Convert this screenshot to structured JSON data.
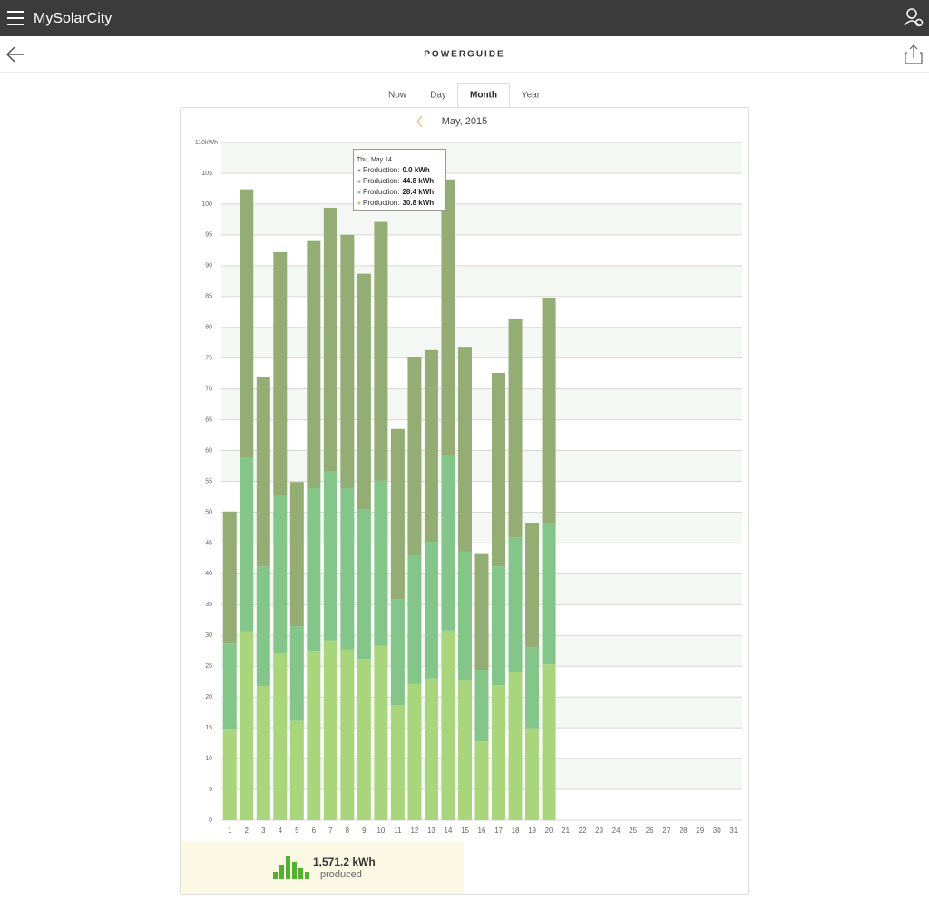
{
  "app": {
    "brand": "MySolarCity",
    "page_title": "POWERGUIDE",
    "tabs": [
      "Now",
      "Day",
      "Month",
      "Year"
    ],
    "selected_tab": 2,
    "period": "May, 2015"
  },
  "tooltip": {
    "title": "Thu, May 14",
    "rows": [
      {
        "label": "Production:",
        "value": "0.0 kWh"
      },
      {
        "label": "Production:",
        "value": "44.8 kWh"
      },
      {
        "label": "Production:",
        "value": "28.4 kWh"
      },
      {
        "label": "Production:",
        "value": "30.8 kWh"
      }
    ]
  },
  "summary": {
    "total": "1,571.2 kWh",
    "caption": "produced"
  },
  "chart_data": {
    "type": "bar",
    "stacked": true,
    "grid": true,
    "categories": [
      "1",
      "2",
      "3",
      "4",
      "5",
      "6",
      "7",
      "8",
      "9",
      "10",
      "11",
      "12",
      "13",
      "14",
      "15",
      "16",
      "17",
      "18",
      "19",
      "20",
      "21",
      "22",
      "23",
      "24",
      "25",
      "26",
      "27",
      "28",
      "29",
      "30",
      "31"
    ],
    "series": [
      {
        "name": "Production",
        "color": "#7f9fb8",
        "values": [
          0,
          0,
          0,
          0,
          0,
          0,
          0,
          0,
          0,
          0,
          0,
          0,
          0,
          0,
          0,
          0,
          0,
          0,
          0,
          0,
          null,
          null,
          null,
          null,
          null,
          null,
          null,
          null,
          null,
          null,
          null
        ]
      },
      {
        "name": "Production",
        "color": "#93ad74",
        "values": [
          21.4,
          43.6,
          30.8,
          39.6,
          23.4,
          40.1,
          42.8,
          41.1,
          38.2,
          42.0,
          27.6,
          32.1,
          31.1,
          44.8,
          33.1,
          18.8,
          31.4,
          35.4,
          20.2,
          36.5,
          null,
          null,
          null,
          null,
          null,
          null,
          null,
          null,
          null,
          null,
          null
        ]
      },
      {
        "name": "Production",
        "color": "#84c68a",
        "values": [
          14.0,
          28.3,
          19.4,
          25.5,
          15.4,
          26.4,
          27.4,
          26.2,
          24.3,
          26.8,
          17.2,
          20.9,
          22.2,
          28.4,
          20.8,
          11.6,
          19.3,
          21.9,
          13.2,
          23.0,
          null,
          null,
          null,
          null,
          null,
          null,
          null,
          null,
          null,
          null,
          null
        ]
      },
      {
        "name": "Production",
        "color": "#a9d67c",
        "values": [
          14.7,
          30.5,
          21.8,
          27.1,
          16.1,
          27.5,
          29.2,
          27.7,
          26.2,
          28.3,
          18.7,
          22.1,
          23.0,
          30.8,
          22.8,
          12.8,
          21.9,
          24.0,
          14.9,
          25.3,
          null,
          null,
          null,
          null,
          null,
          null,
          null,
          null,
          null,
          null,
          null
        ]
      }
    ],
    "ylim": [
      0,
      110
    ],
    "yticks": [
      0,
      5,
      10,
      15,
      20,
      25,
      30,
      35,
      40,
      45,
      50,
      55,
      60,
      65,
      70,
      75,
      80,
      85,
      90,
      95,
      100,
      105,
      {
        "value": 110,
        "label": "110kWh"
      }
    ]
  }
}
